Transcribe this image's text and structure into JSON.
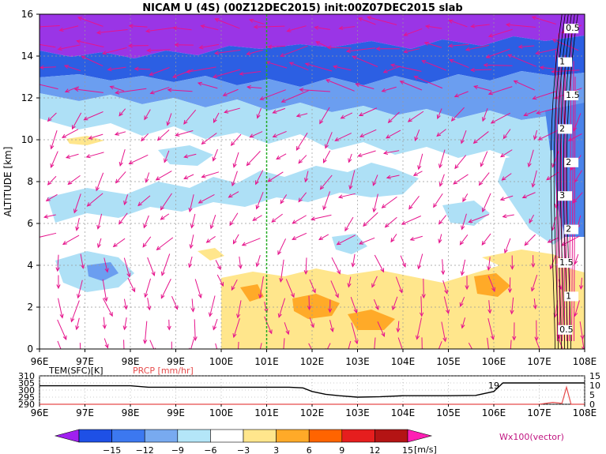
{
  "title": "NICAM U (4S) (00Z12DEC2015) init:00Z07DEC2015 slab",
  "chart_data": [
    {
      "type": "heatmap",
      "xlabel": "",
      "ylabel": "ALTITUDE [km]",
      "x_ticks": [
        "96E",
        "97E",
        "98E",
        "99E",
        "100E",
        "101E",
        "102E",
        "103E",
        "104E",
        "105E",
        "106E",
        "107E",
        "108E"
      ],
      "y_ticks": [
        "0",
        "2",
        "4",
        "6",
        "8",
        "10",
        "12",
        "14",
        "16"
      ],
      "xlim": [
        96,
        108
      ],
      "ylim": [
        0,
        16
      ],
      "marker_lon": 101,
      "contour_labels": [
        "0.5",
        "1",
        "1.5",
        "2",
        "2",
        "3",
        "2",
        "1.5",
        "1",
        "0.5"
      ],
      "colorbar": {
        "ticks": [
          "−15",
          "−12",
          "−9",
          "−6",
          "−3",
          "3",
          "6",
          "9",
          "12",
          "15"
        ],
        "units": "[m/s]",
        "colors": [
          "#a020f0",
          "#1e50e6",
          "#3c78f0",
          "#78aaf0",
          "#b4e6f8",
          "#ffffff",
          "#ffe68c",
          "#ffaa28",
          "#ff6400",
          "#e61e1e",
          "#b41414",
          "#ff1eb4"
        ]
      },
      "vector_label": "Wx100(vector)",
      "vector_color": "#e6148c"
    },
    {
      "type": "line",
      "series": [
        {
          "name": "TEM(SFC)[K]",
          "color": "#000000",
          "axis": "left"
        },
        {
          "name": "PRCP [mm/hr]",
          "color": "#e64b4b",
          "axis": "right"
        }
      ],
      "left_ticks": [
        "290",
        "295",
        "300",
        "305",
        "310"
      ],
      "right_ticks": [
        "0",
        "5",
        "10",
        "15"
      ],
      "ylim_left": [
        290,
        310
      ],
      "ylim_right": [
        0,
        15
      ],
      "x_ticks": [
        "96E",
        "97E",
        "98E",
        "99E",
        "100E",
        "101E",
        "102E",
        "103E",
        "104E",
        "105E",
        "106E",
        "107E",
        "108E"
      ],
      "annotation": "19",
      "temp_x": [
        96,
        97,
        98,
        98.4,
        99,
        100,
        100.7,
        101,
        101.5,
        101.8,
        102,
        102.3,
        102.6,
        103,
        103.5,
        104,
        105,
        105.6,
        106,
        106.2,
        107,
        108
      ],
      "temp_y": [
        303,
        303,
        303,
        302,
        302,
        302,
        302,
        302,
        302,
        301.5,
        299,
        297,
        296,
        295,
        295.3,
        296,
        296,
        296.2,
        299,
        305,
        305,
        305
      ],
      "prcp_x": [
        96,
        106.5,
        107,
        107.3,
        107.5,
        107.6,
        107.7,
        108
      ],
      "prcp_y": [
        0,
        0,
        0,
        1,
        0.5,
        9,
        0,
        0
      ]
    }
  ]
}
